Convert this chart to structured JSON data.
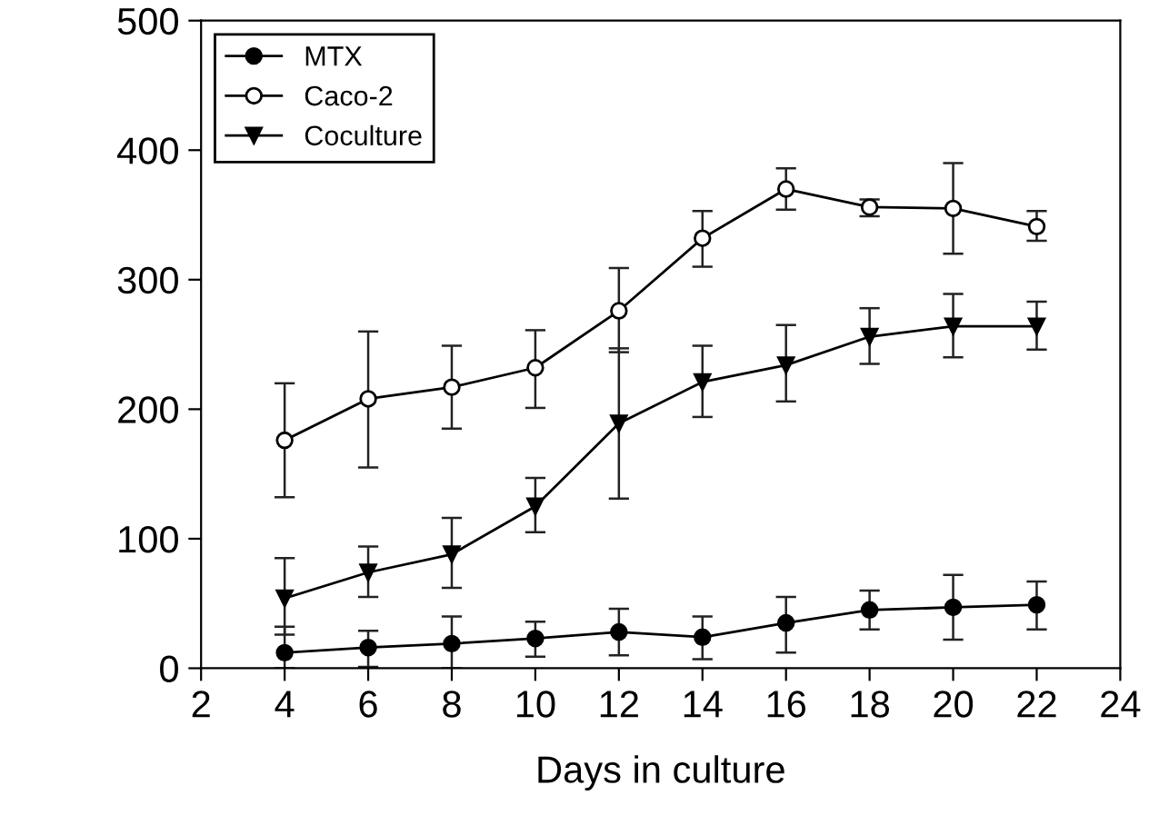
{
  "chart_data": {
    "type": "line",
    "xlabel": "Days in culture",
    "x": [
      4,
      6,
      8,
      10,
      12,
      14,
      16,
      18,
      20,
      22
    ],
    "series": [
      {
        "name": "MTX",
        "color": "#000000",
        "marker": "circle",
        "values": [
          12,
          16,
          19,
          23,
          28,
          24,
          35,
          45,
          47,
          49
        ],
        "errors": [
          [
            0,
            32
          ],
          [
            1,
            29
          ],
          [
            0,
            40
          ],
          [
            9,
            36
          ],
          [
            10,
            46
          ],
          [
            7,
            40
          ],
          [
            12,
            55
          ],
          [
            30,
            60
          ],
          [
            22,
            72
          ],
          [
            30,
            67
          ]
        ]
      },
      {
        "name": "Caco-2",
        "color": "#ffffff",
        "marker": "circle",
        "values": [
          176,
          208,
          217,
          232,
          276,
          332,
          370,
          356,
          355,
          341
        ],
        "errors": [
          [
            132,
            220
          ],
          [
            155,
            260
          ],
          [
            185,
            249
          ],
          [
            201,
            261
          ],
          [
            244,
            309
          ],
          [
            310,
            353
          ],
          [
            354,
            386
          ],
          [
            349,
            362
          ],
          [
            320,
            390
          ],
          [
            330,
            353
          ]
        ]
      },
      {
        "name": "Coculture",
        "color": "#000000",
        "marker": "triangle",
        "values": [
          54,
          74,
          88,
          125,
          189,
          221,
          234,
          256,
          264,
          264
        ],
        "errors": [
          [
            26,
            85
          ],
          [
            55,
            94
          ],
          [
            62,
            116
          ],
          [
            105,
            147
          ],
          [
            131,
            247
          ],
          [
            194,
            249
          ],
          [
            206,
            265
          ],
          [
            235,
            278
          ],
          [
            240,
            289
          ],
          [
            246,
            283
          ]
        ]
      }
    ],
    "xlim": [
      2,
      24
    ],
    "xticks": [
      2,
      4,
      6,
      8,
      10,
      12,
      14,
      16,
      18,
      20,
      22,
      24
    ],
    "ylim": [
      0,
      500
    ],
    "yticks": [
      0,
      100,
      200,
      300,
      400,
      500
    ],
    "grid": false,
    "legend": "top left",
    "line_style": "solid"
  }
}
